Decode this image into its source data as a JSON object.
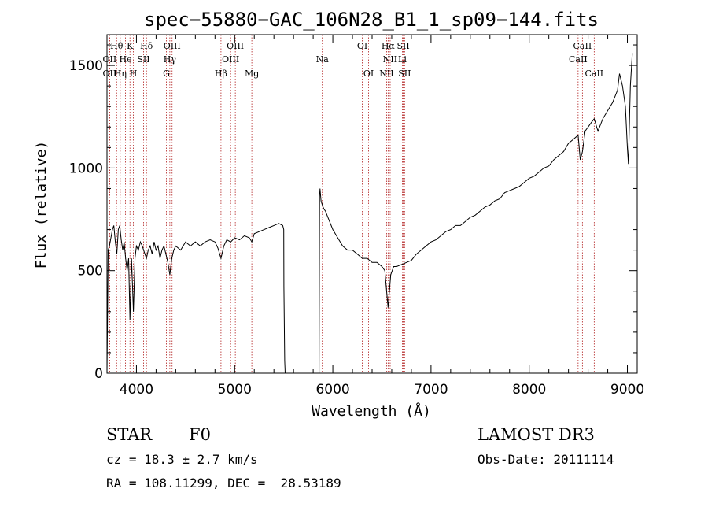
{
  "chart_data": {
    "type": "line",
    "title": "spec−55880−GAC_106N28_B1_1_sp09−144.fits",
    "xlabel": "Wavelength (Å)",
    "ylabel": "Flux (relative)",
    "xlim": [
      3700,
      9100
    ],
    "ylim": [
      0,
      1650
    ],
    "xticks": [
      4000,
      5000,
      6000,
      7000,
      8000,
      9000
    ],
    "yticks": [
      0,
      500,
      1000,
      1500
    ],
    "grid": false,
    "line_color": "#000000",
    "marker_color": "#b22222",
    "lines": [
      {
        "label": "Hθ",
        "wave": 3798,
        "row": 1
      },
      {
        "label": "OII",
        "wave": 3727,
        "row": 2
      },
      {
        "label": "OII",
        "wave": 3727,
        "row": 3
      },
      {
        "label": "K",
        "wave": 3934,
        "row": 1
      },
      {
        "label": "He",
        "wave": 3889,
        "row": 2
      },
      {
        "label": "Hη",
        "wave": 3835,
        "row": 3
      },
      {
        "label": "Hδ",
        "wave": 4102,
        "row": 1
      },
      {
        "label": "SII",
        "wave": 4072,
        "row": 2
      },
      {
        "label": "H",
        "wave": 3969,
        "row": 3
      },
      {
        "label": "OIII",
        "wave": 4363,
        "row": 1
      },
      {
        "label": "Hγ",
        "wave": 4340,
        "row": 2
      },
      {
        "label": "G",
        "wave": 4305,
        "row": 3
      },
      {
        "label": "OIII",
        "wave": 5007,
        "row": 1
      },
      {
        "label": "OIII",
        "wave": 4959,
        "row": 2
      },
      {
        "label": "Hβ",
        "wave": 4861,
        "row": 3
      },
      {
        "label": "Mg",
        "wave": 5175,
        "row": 3
      },
      {
        "label": "Na",
        "wave": 5893,
        "row": 2
      },
      {
        "label": "OI",
        "wave": 6300,
        "row": 1
      },
      {
        "label": "OI",
        "wave": 6364,
        "row": 3
      },
      {
        "label": "Hα",
        "wave": 6563,
        "row": 1
      },
      {
        "label": "NII",
        "wave": 6584,
        "row": 2
      },
      {
        "label": "NII",
        "wave": 6548,
        "row": 3
      },
      {
        "label": "SII",
        "wave": 6717,
        "row": 1
      },
      {
        "label": "Li",
        "wave": 6708,
        "row": 2
      },
      {
        "label": "SII",
        "wave": 6731,
        "row": 3
      },
      {
        "label": "CaII",
        "wave": 8542,
        "row": 1
      },
      {
        "label": "CaII",
        "wave": 8498,
        "row": 2
      },
      {
        "label": "CaII",
        "wave": 8662,
        "row": 3
      }
    ],
    "series": [
      {
        "x": [
          3700,
          3712,
          3725,
          3740,
          3755,
          3770,
          3785,
          3800,
          3815,
          3830,
          3845,
          3860,
          3875,
          3890,
          3905,
          3920,
          3934,
          3950,
          3969,
          3985,
          4000,
          4020,
          4040,
          4060,
          4080,
          4102,
          4120,
          4140,
          4160,
          4180,
          4200,
          4220,
          4240,
          4260,
          4280,
          4300,
          4320,
          4340,
          4360,
          4380,
          4400,
          4450,
          4500,
          4550,
          4600,
          4650,
          4700,
          4750,
          4800,
          4830,
          4861,
          4890,
          4920,
          4960,
          5000,
          5050,
          5100,
          5150,
          5175,
          5200,
          5250,
          5300,
          5350,
          5400,
          5450,
          5490,
          5500,
          5502,
          5510,
          5515,
          5860,
          5865,
          5870,
          5880,
          5893,
          5910,
          5925,
          5950,
          6000,
          6050,
          6100,
          6150,
          6200,
          6250,
          6300,
          6350,
          6400,
          6450,
          6500,
          6530,
          6563,
          6590,
          6620,
          6650,
          6700,
          6750,
          6800,
          6850,
          6900,
          6950,
          7000,
          7050,
          7100,
          7150,
          7200,
          7250,
          7300,
          7350,
          7400,
          7450,
          7500,
          7550,
          7600,
          7650,
          7700,
          7750,
          7800,
          7850,
          7900,
          7950,
          8000,
          8050,
          8100,
          8150,
          8200,
          8250,
          8300,
          8350,
          8400,
          8450,
          8498,
          8520,
          8542,
          8570,
          8600,
          8630,
          8662,
          8700,
          8750,
          8800,
          8850,
          8900,
          8920,
          8950,
          8980,
          9000,
          9010,
          9030,
          9050
        ],
        "y": [
          0,
          600,
          620,
          660,
          700,
          720,
          640,
          580,
          700,
          720,
          650,
          600,
          640,
          560,
          500,
          560,
          260,
          560,
          300,
          560,
          620,
          600,
          640,
          620,
          590,
          560,
          600,
          620,
          580,
          640,
          600,
          620,
          560,
          600,
          620,
          580,
          540,
          480,
          560,
          600,
          620,
          600,
          640,
          620,
          640,
          620,
          640,
          650,
          640,
          610,
          560,
          620,
          650,
          640,
          660,
          650,
          670,
          660,
          640,
          680,
          690,
          700,
          710,
          720,
          730,
          720,
          700,
          420,
          60,
          0,
          0,
          860,
          900,
          840,
          820,
          800,
          790,
          760,
          700,
          660,
          620,
          600,
          600,
          580,
          560,
          560,
          540,
          540,
          520,
          500,
          320,
          480,
          520,
          520,
          530,
          540,
          550,
          580,
          600,
          620,
          640,
          650,
          670,
          690,
          700,
          720,
          720,
          740,
          760,
          770,
          790,
          810,
          820,
          840,
          850,
          880,
          890,
          900,
          910,
          930,
          950,
          960,
          980,
          1000,
          1010,
          1040,
          1060,
          1080,
          1120,
          1140,
          1160,
          1040,
          1080,
          1180,
          1200,
          1220,
          1240,
          1180,
          1240,
          1280,
          1320,
          1380,
          1460,
          1400,
          1300,
          1100,
          1020,
          1400,
          1560
        ]
      }
    ]
  },
  "info": {
    "object_class": "STAR",
    "subclass": "F0",
    "survey": "LAMOST DR3",
    "redshift": "cz = 18.3 ± 2.7 km/s",
    "obs_date": "Obs-Date: 20111114",
    "coords": "RA = 108.11299, DEC =  28.53189"
  }
}
